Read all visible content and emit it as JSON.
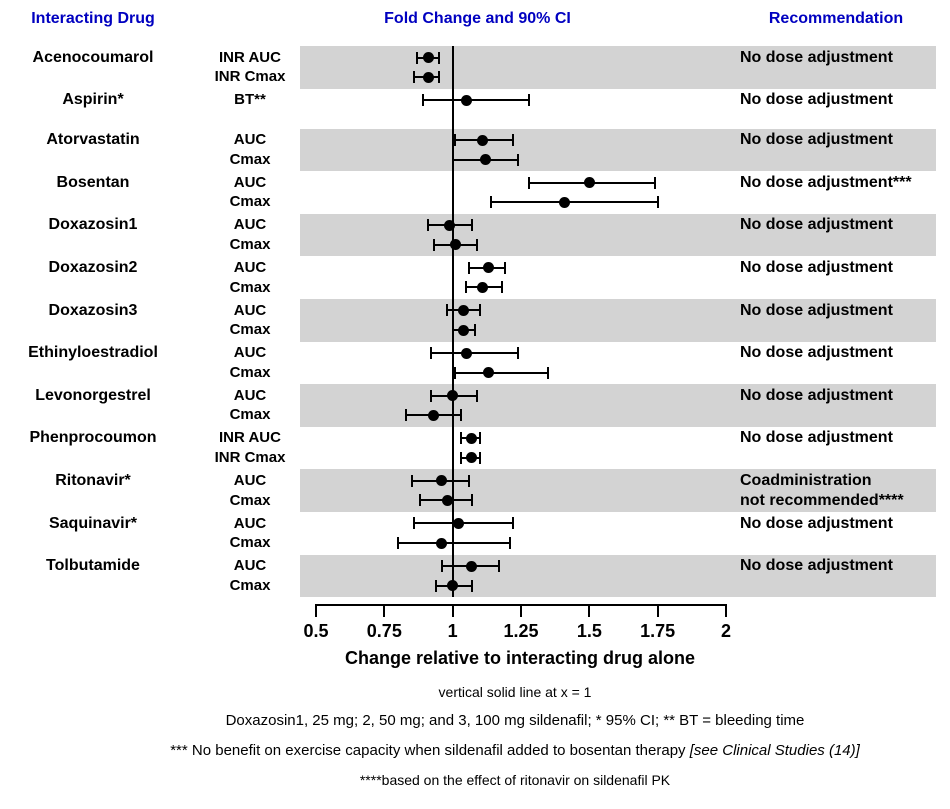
{
  "header": {
    "col_drug": "Interacting Drug",
    "col_plot": "Fold Change and 90% CI",
    "col_rec": "Recommendation"
  },
  "colors": {
    "header_text": "#0000C0",
    "shaded_band": "#D3D3D3",
    "marker": "#000000"
  },
  "chart_data": {
    "type": "scatter",
    "variant": "forest-plot",
    "xlabel": "Change relative to interacting drug alone",
    "xlim": [
      0.5,
      2
    ],
    "x_ticks": [
      0.5,
      0.75,
      1,
      1.25,
      1.5,
      1.75,
      2
    ],
    "x_tick_labels": [
      "0.5",
      "0.75",
      "1",
      "1.25",
      "1.5",
      "1.75",
      "2"
    ],
    "reference_line_x": 1,
    "grid": false,
    "groups": [
      {
        "drug": "Acenocoumarol",
        "shaded": true,
        "recommendation": [
          "No dose adjustment"
        ],
        "rows": [
          {
            "measure": "INR AUC",
            "estimate": 0.91,
            "ci_low": 0.87,
            "ci_high": 0.95
          },
          {
            "measure": "INR Cmax",
            "estimate": 0.91,
            "ci_low": 0.86,
            "ci_high": 0.95
          }
        ]
      },
      {
        "drug": "Aspirin*",
        "shaded": false,
        "extra_height": 17,
        "recommendation": [
          "No dose adjustment"
        ],
        "rows": [
          {
            "measure": "BT**",
            "estimate": 1.05,
            "ci_low": 0.89,
            "ci_high": 1.28
          }
        ]
      },
      {
        "drug": "Atorvastatin",
        "shaded": true,
        "recommendation": [
          "No dose adjustment"
        ],
        "rows": [
          {
            "measure": "AUC",
            "estimate": 1.11,
            "ci_low": 1.01,
            "ci_high": 1.22
          },
          {
            "measure": "Cmax",
            "estimate": 1.12,
            "ci_low": 1.0,
            "ci_high": 1.24
          }
        ]
      },
      {
        "drug": "Bosentan",
        "shaded": false,
        "recommendation": [
          "No dose adjustment***"
        ],
        "rows": [
          {
            "measure": "AUC",
            "estimate": 1.5,
            "ci_low": 1.28,
            "ci_high": 1.74
          },
          {
            "measure": "Cmax",
            "estimate": 1.41,
            "ci_low": 1.14,
            "ci_high": 1.75
          }
        ]
      },
      {
        "drug": "Doxazosin1",
        "shaded": true,
        "recommendation": [
          "No dose adjustment"
        ],
        "rows": [
          {
            "measure": "AUC",
            "estimate": 0.99,
            "ci_low": 0.91,
            "ci_high": 1.07
          },
          {
            "measure": "Cmax",
            "estimate": 1.01,
            "ci_low": 0.93,
            "ci_high": 1.09
          }
        ]
      },
      {
        "drug": "Doxazosin2",
        "shaded": false,
        "recommendation": [
          "No dose adjustment"
        ],
        "rows": [
          {
            "measure": "AUC",
            "estimate": 1.13,
            "ci_low": 1.06,
            "ci_high": 1.19
          },
          {
            "measure": "Cmax",
            "estimate": 1.11,
            "ci_low": 1.05,
            "ci_high": 1.18
          }
        ]
      },
      {
        "drug": "Doxazosin3",
        "shaded": true,
        "recommendation": [
          "No dose adjustment"
        ],
        "rows": [
          {
            "measure": "AUC",
            "estimate": 1.04,
            "ci_low": 0.98,
            "ci_high": 1.1
          },
          {
            "measure": "Cmax",
            "estimate": 1.04,
            "ci_low": 1.0,
            "ci_high": 1.08
          }
        ]
      },
      {
        "drug": "Ethinyloestradiol",
        "shaded": false,
        "recommendation": [
          "No dose adjustment"
        ],
        "rows": [
          {
            "measure": "AUC",
            "estimate": 1.05,
            "ci_low": 0.92,
            "ci_high": 1.24
          },
          {
            "measure": "Cmax",
            "estimate": 1.13,
            "ci_low": 1.01,
            "ci_high": 1.35
          }
        ]
      },
      {
        "drug": "Levonorgestrel",
        "shaded": true,
        "recommendation": [
          "No dose adjustment"
        ],
        "rows": [
          {
            "measure": "AUC",
            "estimate": 1.0,
            "ci_low": 0.92,
            "ci_high": 1.09
          },
          {
            "measure": "Cmax",
            "estimate": 0.93,
            "ci_low": 0.83,
            "ci_high": 1.03
          }
        ]
      },
      {
        "drug": "Phenprocoumon",
        "shaded": false,
        "recommendation": [
          "No dose adjustment"
        ],
        "rows": [
          {
            "measure": "INR AUC",
            "estimate": 1.07,
            "ci_low": 1.03,
            "ci_high": 1.1
          },
          {
            "measure": "INR Cmax",
            "estimate": 1.07,
            "ci_low": 1.03,
            "ci_high": 1.1
          }
        ]
      },
      {
        "drug": "Ritonavir*",
        "shaded": true,
        "recommendation": [
          "Coadministration",
          "not recommended****"
        ],
        "rows": [
          {
            "measure": "AUC",
            "estimate": 0.96,
            "ci_low": 0.85,
            "ci_high": 1.06
          },
          {
            "measure": "Cmax",
            "estimate": 0.98,
            "ci_low": 0.88,
            "ci_high": 1.07
          }
        ]
      },
      {
        "drug": "Saquinavir*",
        "shaded": false,
        "recommendation": [
          "No dose adjustment"
        ],
        "rows": [
          {
            "measure": "AUC",
            "estimate": 1.02,
            "ci_low": 0.86,
            "ci_high": 1.22
          },
          {
            "measure": "Cmax",
            "estimate": 0.96,
            "ci_low": 0.8,
            "ci_high": 1.21
          }
        ]
      },
      {
        "drug": "Tolbutamide",
        "shaded": true,
        "recommendation": [
          "No dose adjustment"
        ],
        "rows": [
          {
            "measure": "AUC",
            "estimate": 1.07,
            "ci_low": 0.96,
            "ci_high": 1.17
          },
          {
            "measure": "Cmax",
            "estimate": 1.0,
            "ci_low": 0.94,
            "ci_high": 1.07
          }
        ]
      }
    ]
  },
  "footnotes": {
    "line1": "vertical solid line at x = 1",
    "line2": "Doxazosin1, 25 mg; 2, 50 mg; and 3, 100 mg sildenafil; * 95% CI; ** BT = bleeding time",
    "line3_main": "*** No benefit on exercise capacity when sildenafil added to bosentan therapy",
    "line3_italic": "[see Clinical Studies (14)]",
    "line4": "****based on the effect of ritonavir on sildenafil PK"
  }
}
